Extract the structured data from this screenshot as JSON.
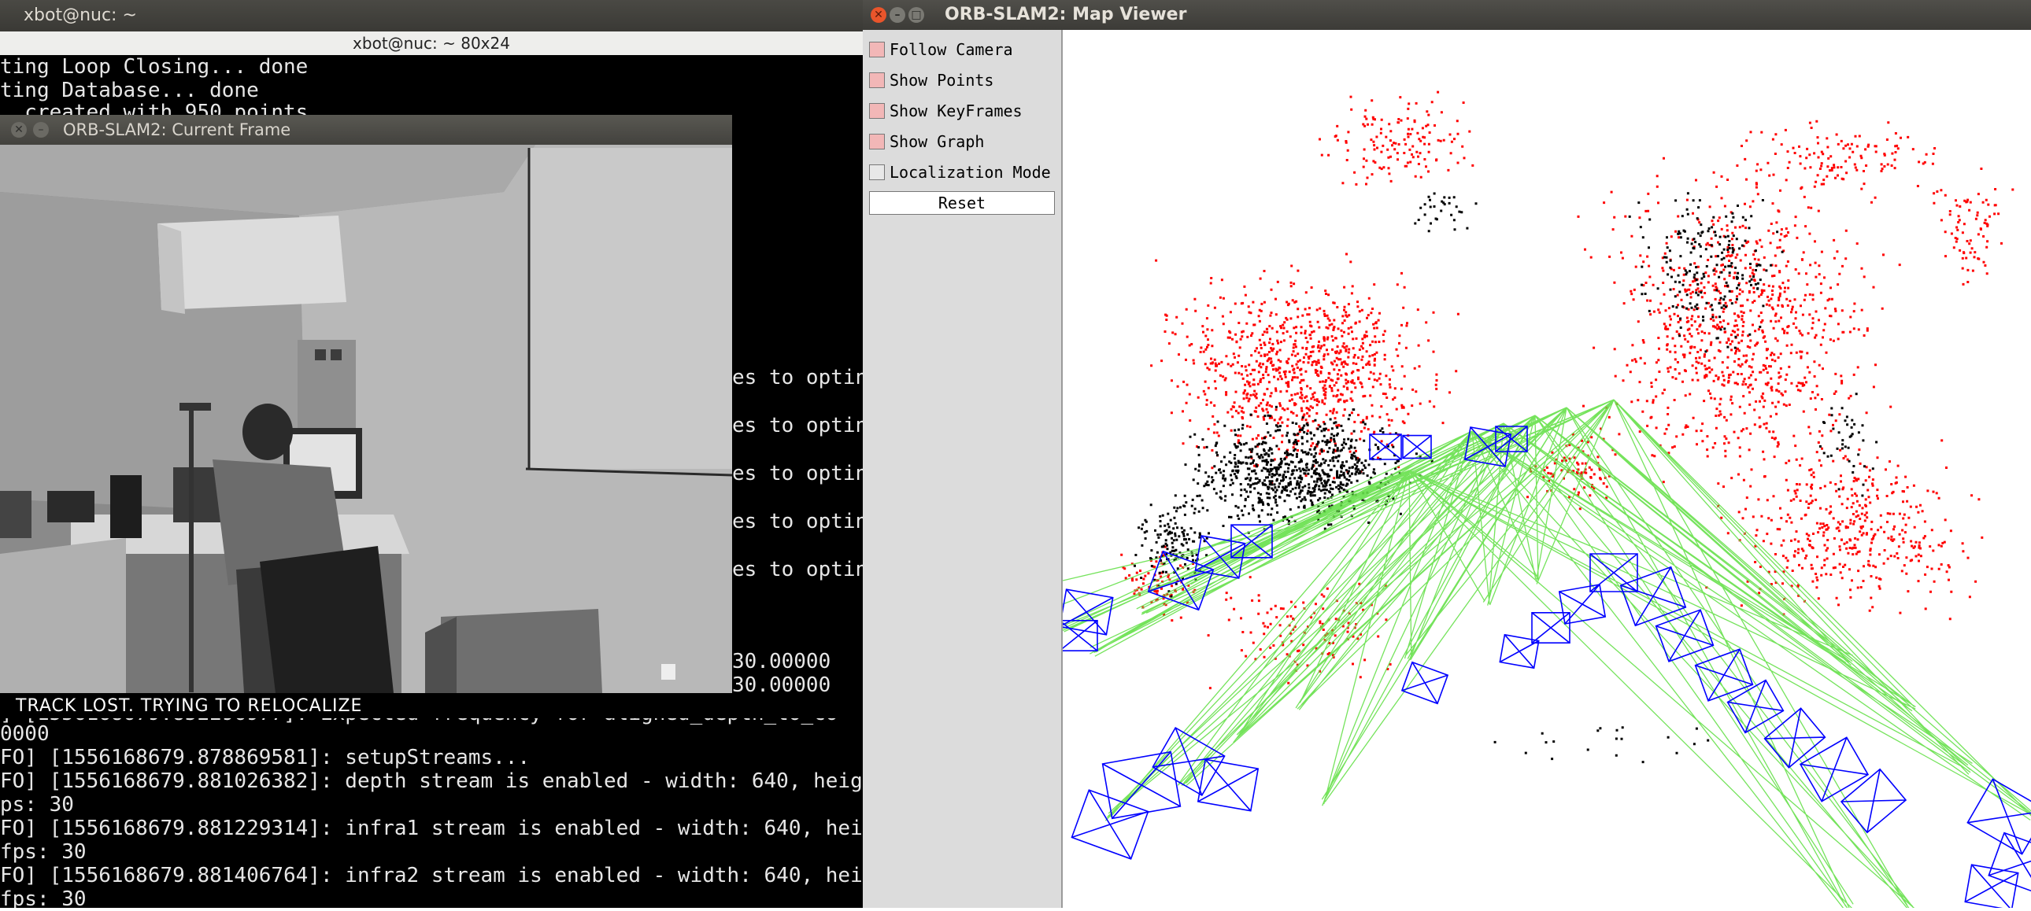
{
  "terminal": {
    "topbar_title": "xbot@nuc: ~",
    "window_title": "xbot@nuc: ~ 80x24",
    "lines_top": [
      "ting Loop Closing... done",
      "ting Database... done",
      "  created with 950 points"
    ],
    "lines_right": [
      "es to optin",
      "es to optin",
      "es to optin",
      "es to optin",
      "es to optin",
      "30.00000",
      "30.00000"
    ],
    "lines_bottom": [
      "] [1556168679.852296977]: Expected frequency for aligned_depth_to_co",
      "0000",
      "FO] [1556168679.878869581]: setupStreams...",
      "FO] [1556168679.881026382]: depth stream is enabled - width: 640, heig",
      "ps: 30",
      "FO] [1556168679.881229314]: infra1 stream is enabled - width: 640, hei",
      "fps: 30",
      "FO] [1556168679.881406764]: infra2 stream is enabled - width: 640, hei",
      "fps: 30"
    ]
  },
  "current_frame": {
    "window_title": "ORB-SLAM2: Current Frame",
    "status_text": "TRACK LOST. TRYING TO RELOCALIZE"
  },
  "map_viewer": {
    "window_title": "ORB-SLAM2: Map Viewer",
    "options": [
      {
        "label": "Follow Camera",
        "checked": true
      },
      {
        "label": "Show Points",
        "checked": true
      },
      {
        "label": "Show KeyFrames",
        "checked": true
      },
      {
        "label": "Show Graph",
        "checked": true
      },
      {
        "label": "Localization Mode",
        "checked": false
      }
    ],
    "reset_label": "Reset"
  },
  "colors": {
    "map_point_red": "#ff0000",
    "map_point_black": "#000000",
    "keyframe_blue": "#0000ff",
    "graph_green": "#66e04a",
    "checkbox_on": "#f2b7b7",
    "close_button": "#e9552b"
  }
}
